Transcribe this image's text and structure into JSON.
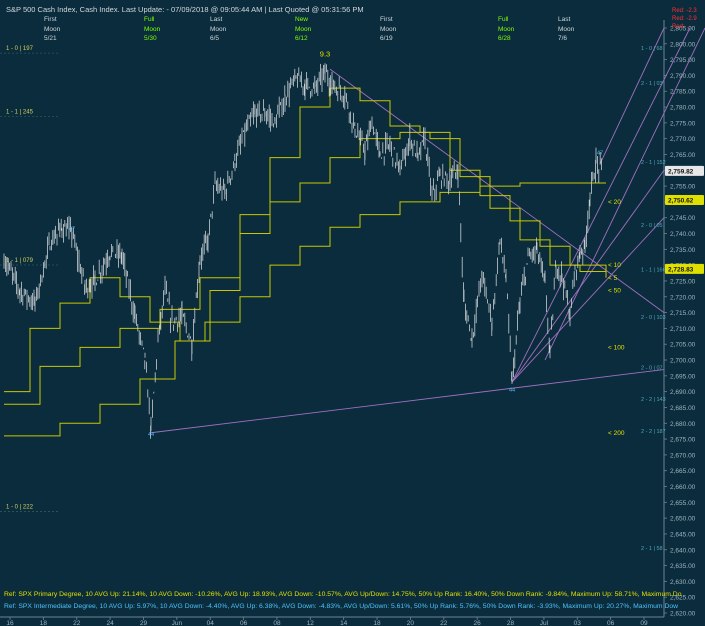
{
  "title": "S&P 500 Cash Index,  Cash Index.  Last Update:  - 07/09/2018 @ 09:05:44 AM | Last Quoted @ 05:31:56 PM",
  "top_right_labels": [
    "Red: -2.3",
    "Red: -2.9",
    "Red: ..."
  ],
  "moon_phases": [
    {
      "phase1": "First",
      "phase2": "Moon",
      "date": "5/21",
      "color": "#cfd8dc"
    },
    {
      "phase1": "Full",
      "phase2": "Moon",
      "date": "5/30",
      "color": "#7fff00"
    },
    {
      "phase1": "Last",
      "phase2": "Moon",
      "date": "6/5",
      "color": "#cfd8dc"
    },
    {
      "phase1": "New",
      "phase2": "Moon",
      "date": "6/12",
      "color": "#7fff00"
    },
    {
      "phase1": "First",
      "phase2": "Moon",
      "date": "6/19",
      "color": "#cfd8dc"
    },
    {
      "phase1": "Full",
      "phase2": "Moon",
      "date": "6/28",
      "color": "#7fff00"
    },
    {
      "phase1": "Last",
      "phase2": "Moon",
      "date": "7/6",
      "color": "#cfd8dc"
    }
  ],
  "chart_data": {
    "type": "line",
    "title": "S&P 500 Cash Index",
    "ylim": [
      2620,
      2805
    ],
    "y_ticks": [
      "2,620.00",
      "2,625.00",
      "2,630.00",
      "2,635.00",
      "2,640.00",
      "2,645.00",
      "2,650.00",
      "2,655.00",
      "2,660.00",
      "2,665.00",
      "2,670.00",
      "2,675.00",
      "2,680.00",
      "2,685.00",
      "2,690.00",
      "2,695.00",
      "2,700.00",
      "2,705.00",
      "2,710.00",
      "2,715.00",
      "2,720.00",
      "2,725.00",
      "2,730.00",
      "2,735.00",
      "2,740.00",
      "2,745.00",
      "2,750.00",
      "2,755.00",
      "2,760.00",
      "2,765.00",
      "2,770.00",
      "2,775.00",
      "2,780.00",
      "2,785.00",
      "2,790.00",
      "2,795.00",
      "2,800.00",
      "2,805.00"
    ],
    "x_ticks": [
      "16",
      "18",
      "22",
      "24",
      "29",
      "Jun",
      "04",
      "06",
      "08",
      "12",
      "14",
      "18",
      "20",
      "22",
      "26",
      "28",
      "Jul",
      "03",
      "06",
      "09"
    ],
    "price_tags": [
      {
        "label": "2,759.82",
        "value": 2759.82,
        "style": "white"
      },
      {
        "label": "2,750.62",
        "value": 2750.62,
        "style": "yellow"
      },
      {
        "label": "2,728.83",
        "value": 2728.83,
        "style": "yellow"
      }
    ],
    "ma_labels": [
      {
        "label": "< 20",
        "value": 2750
      },
      {
        "label": "< 10",
        "value": 2730
      },
      {
        "label": "< 5",
        "value": 2726
      },
      {
        "label": "< 50",
        "value": 2722
      },
      {
        "label": "< 100",
        "value": 2704
      },
      {
        "label": "< 200",
        "value": 2677
      }
    ],
    "grid_labels_left": [
      {
        "label": "1 - 0 | 197",
        "value": 2798
      },
      {
        "label": "1 - 1 | 245",
        "value": 2778
      },
      {
        "label": "1 - 1 | 079",
        "value": 2731
      },
      {
        "label": "1 - 0 | 222",
        "value": 2653
      }
    ],
    "grid_labels_right": [
      {
        "label": "1 - 0 | 68",
        "value": 2798
      },
      {
        "label": "2 - 1 | 03",
        "value": 2787
      },
      {
        "label": "2 - 1 | 152",
        "value": 2762
      },
      {
        "label": "2 - 0 | 05",
        "value": 2742
      },
      {
        "label": "1 - 1 | 166",
        "value": 2728
      },
      {
        "label": "2 - 0 | 103",
        "value": 2713
      },
      {
        "label": "2 - 0 | 07",
        "value": 2697
      },
      {
        "label": "2 - 2 | 143",
        "value": 2687
      },
      {
        "label": "2 - 2 | 187",
        "value": 2677
      },
      {
        "label": "2 - 1 | 58",
        "value": 2640
      }
    ],
    "annotations": [
      {
        "label": "9.3",
        "x": 325,
        "value": 2796,
        "color": "#e0e000"
      },
      {
        "label": "47",
        "x": 72,
        "value": 2741,
        "color": "#4fc3f7"
      },
      {
        "label": "44",
        "x": 151,
        "value": 2676,
        "color": "#4fc3f7"
      },
      {
        "label": "44",
        "x": 512,
        "value": 2690,
        "color": "#4fc3f7"
      },
      {
        "label": "47",
        "x": 600,
        "value": 2765,
        "color": "#4fc3f7"
      }
    ],
    "footer_lines": [
      {
        "text": "Ref: SPX Primary Degree, 10 AVG Up: 21.14%, 10 AVG Down: -10.26%, AVG Up: 18.93%, AVG Down: -10.57%, AVG Up/Down: 14.75%, 50%  Up Rank: 16.40%, 50% Down Rank: -9.84%, Maximum Up: 58.71%, Maximum Do",
        "color": "#e0e000"
      },
      {
        "text": "Ref: SPX Intermediate Degree, 10 AVG Up: 5.97%, 10 AVG Down: -4.40%, AVG Up: 6.38%, AVG Down: -4.83%, AVG Up/Down: 5.61%, 50%  Up Rank: 5.76%, 50% Down Rank: -3.93%, Maximum Up: 20.27%, Maximum Dow",
        "color": "#4fc3f7"
      }
    ]
  }
}
